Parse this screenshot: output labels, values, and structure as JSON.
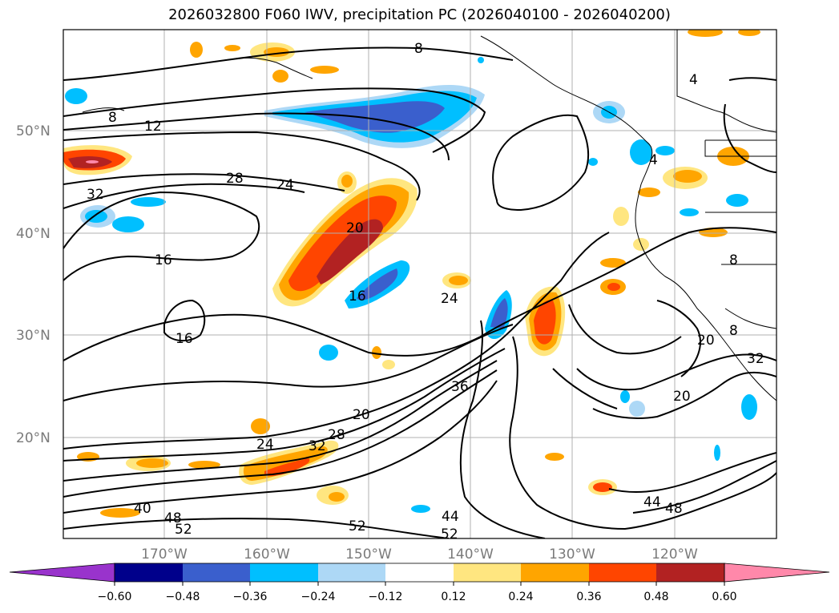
{
  "title": "2026032800 F060 IWV, precipitation PC (2026040100 - 2026040200)",
  "lat_labels": [
    "50°N",
    "40°N",
    "30°N",
    "20°N"
  ],
  "lon_labels": [
    "170°W",
    "160°W",
    "150°W",
    "140°W",
    "130°W",
    "120°W"
  ],
  "contour_labels": [
    "8",
    "12",
    "28",
    "24",
    "32",
    "20",
    "16",
    "16",
    "16",
    "24",
    "36",
    "20",
    "28",
    "24",
    "32",
    "40",
    "48",
    "52",
    "52",
    "44",
    "52",
    "44",
    "48",
    "20",
    "20",
    "32",
    "4",
    "4",
    "8",
    "8"
  ],
  "colorbar": {
    "ticks": [
      "−0.60",
      "−0.48",
      "−0.36",
      "−0.24",
      "−0.12",
      "0.12",
      "0.24",
      "0.36",
      "0.48",
      "0.60"
    ],
    "colors": [
      "#9933cc",
      "#00008b",
      "#3a5fcd",
      "#00bfff",
      "#add8f6",
      "#ffffff",
      "#ffe680",
      "#ffa500",
      "#ff4500",
      "#b22222",
      "#ff88aa"
    ]
  },
  "colors": {
    "contour": "#000000",
    "grid": "#b0b0b0",
    "coast": "#000000"
  }
}
